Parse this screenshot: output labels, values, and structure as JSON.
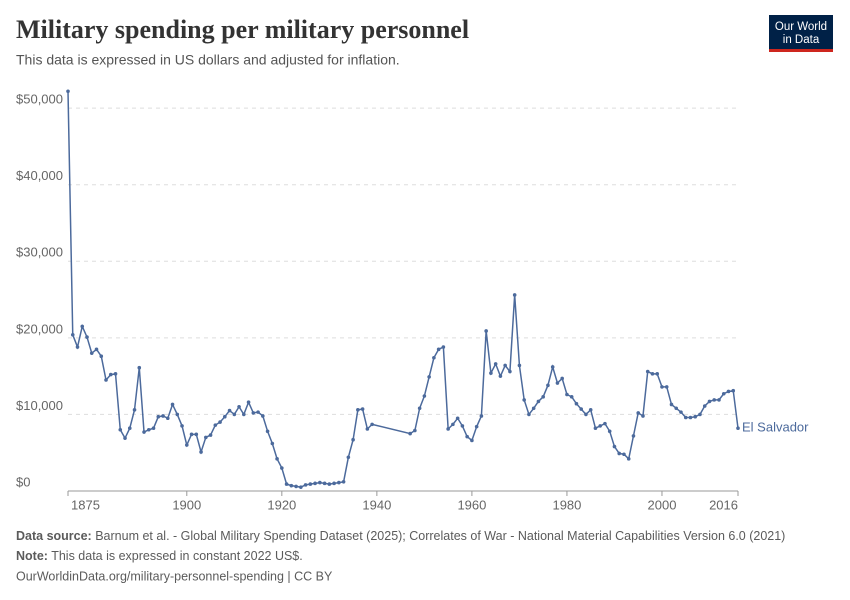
{
  "chart_data": {
    "type": "line",
    "title": "Military spending per military personnel",
    "subtitle": "This data is expressed in US dollars and adjusted for inflation.",
    "logo": [
      "Our World",
      "in Data"
    ],
    "x": [
      1875,
      1876,
      1877,
      1878,
      1879,
      1880,
      1881,
      1882,
      1883,
      1884,
      1885,
      1886,
      1887,
      1888,
      1889,
      1890,
      1891,
      1892,
      1893,
      1894,
      1895,
      1896,
      1897,
      1898,
      1899,
      1900,
      1901,
      1902,
      1903,
      1904,
      1905,
      1906,
      1907,
      1908,
      1909,
      1910,
      1911,
      1912,
      1913,
      1914,
      1915,
      1916,
      1917,
      1918,
      1919,
      1920,
      1921,
      1922,
      1923,
      1924,
      1925,
      1926,
      1927,
      1928,
      1929,
      1930,
      1931,
      1932,
      1933,
      1934,
      1935,
      1936,
      1937,
      1938,
      1939,
      1947,
      1948,
      1949,
      1950,
      1951,
      1952,
      1953,
      1954,
      1955,
      1956,
      1957,
      1958,
      1959,
      1960,
      1961,
      1962,
      1963,
      1964,
      1965,
      1966,
      1967,
      1968,
      1969,
      1970,
      1971,
      1972,
      1973,
      1974,
      1975,
      1976,
      1977,
      1978,
      1979,
      1980,
      1981,
      1982,
      1983,
      1984,
      1985,
      1986,
      1987,
      1988,
      1989,
      1990,
      1991,
      1992,
      1993,
      1994,
      1995,
      1996,
      1997,
      1998,
      1999,
      2000,
      2001,
      2002,
      2003,
      2004,
      2005,
      2006,
      2007,
      2008,
      2009,
      2010,
      2011,
      2012,
      2013,
      2014,
      2015,
      2016
    ],
    "series": [
      {
        "name": "El Salvador",
        "color": "#4c6a9c",
        "values": [
          52200,
          20400,
          18800,
          21500,
          20100,
          18000,
          18500,
          17600,
          14500,
          15200,
          15300,
          8000,
          6900,
          8200,
          10600,
          16100,
          7700,
          8000,
          8200,
          9700,
          9800,
          9500,
          11300,
          10000,
          8500,
          6000,
          7400,
          7400,
          5100,
          7000,
          7300,
          8600,
          9000,
          9700,
          10500,
          10000,
          11000,
          10000,
          11600,
          10200,
          10300,
          9800,
          7800,
          6200,
          4200,
          3000,
          900,
          700,
          600,
          500,
          800,
          900,
          1000,
          1100,
          1000,
          900,
          1000,
          1100,
          1200,
          4400,
          6700,
          10600,
          10700,
          8100,
          8700,
          7500,
          7900,
          10800,
          12400,
          14900,
          17400,
          18500,
          18800,
          8100,
          8700,
          9500,
          8500,
          7100,
          6600,
          8400,
          9800,
          20900,
          15400,
          16600,
          15000,
          16400,
          15600,
          25600,
          16400,
          11900,
          10000,
          10800,
          11700,
          12300,
          13800,
          16200,
          14100,
          14700,
          12600,
          12300,
          11400,
          10700,
          10000,
          10600,
          8200,
          8500,
          8800,
          7800,
          5800,
          4900,
          4800,
          4200,
          7200,
          10200,
          9800,
          15600,
          15300,
          15300,
          13600,
          13600,
          11300,
          10800,
          10300,
          9600,
          9600,
          9700,
          10000,
          11100,
          11700,
          11900,
          11900,
          12700,
          13000,
          13100,
          8200
        ]
      }
    ],
    "xlim": [
      1875,
      2016
    ],
    "xticks": [
      1875,
      1900,
      1920,
      1940,
      1960,
      1980,
      2000,
      2016
    ],
    "ylim": [
      0,
      52500
    ],
    "yticks": [
      {
        "value": 0,
        "label": "$0"
      },
      {
        "value": 10000,
        "label": "$10,000"
      },
      {
        "value": 20000,
        "label": "$20,000"
      },
      {
        "value": 30000,
        "label": "$30,000"
      },
      {
        "value": 40000,
        "label": "$40,000"
      },
      {
        "value": 50000,
        "label": "$50,000"
      }
    ],
    "grid": true,
    "source_label": "Data source:",
    "source": "Barnum et al. - Global Military Spending Dataset (2025); Correlates of War - National Material Capabilities Version 6.0 (2021)",
    "note_label": "Note:",
    "note": "This data is expressed in constant 2022 US$.",
    "url": "OurWorldinData.org/military-personnel-spending | CC BY"
  }
}
